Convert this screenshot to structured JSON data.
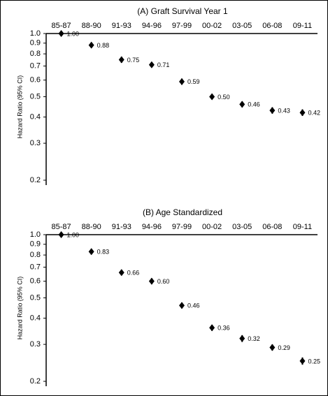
{
  "chart_data": [
    {
      "type": "errorbar",
      "title": "(A) Graft Survival Year 1",
      "y_label": "Hazard Ratio (95% CI)",
      "categories": [
        "85-87",
        "88-90",
        "91-93",
        "94-96",
        "97-99",
        "00-02",
        "03-05",
        "06-08",
        "09-11"
      ],
      "values": [
        1.0,
        0.88,
        0.75,
        0.71,
        0.59,
        0.5,
        0.46,
        0.43,
        0.42
      ],
      "value_labels": [
        "1.00",
        "0.88",
        "0.75",
        "0.71",
        "0.59",
        "0.50",
        "0.46",
        "0.43",
        "0.42"
      ],
      "errors": [
        0,
        0.025,
        0.025,
        0.02,
        0.02,
        0.015,
        0.015,
        0.015,
        0.015
      ],
      "color": "#000000",
      "log_scale": true,
      "ylim": [
        0.2,
        1.0
      ],
      "yticks": [
        {
          "value": 1,
          "label": "1.0"
        },
        0.9,
        0.8,
        0.7,
        0.6,
        0.5,
        0.4,
        0.3,
        0.2
      ]
    },
    {
      "type": "errorbar",
      "title": "(B) Age Standardized",
      "y_label": "Hazard Ratio (95% CI)",
      "categories": [
        "85-87",
        "88-90",
        "91-93",
        "94-96",
        "97-99",
        "00-02",
        "03-05",
        "06-08",
        "09-11"
      ],
      "values": [
        1.0,
        0.83,
        0.66,
        0.6,
        0.46,
        0.36,
        0.32,
        0.29,
        0.25
      ],
      "value_labels": [
        "1.00",
        "0.83",
        "0.66",
        "0.60",
        "0.46",
        "0.36",
        "0.32",
        "0.29",
        "0.25"
      ],
      "errors": [
        0,
        0.025,
        0.02,
        0.02,
        0.015,
        0.012,
        0.012,
        0.01,
        0.01
      ],
      "color": "#000000",
      "log_scale": true,
      "ylim": [
        0.2,
        1.0
      ],
      "yticks": [
        {
          "value": 1,
          "label": "1.0"
        },
        0.9,
        0.8,
        0.7,
        0.6,
        0.5,
        0.4,
        0.3,
        0.2
      ]
    }
  ]
}
